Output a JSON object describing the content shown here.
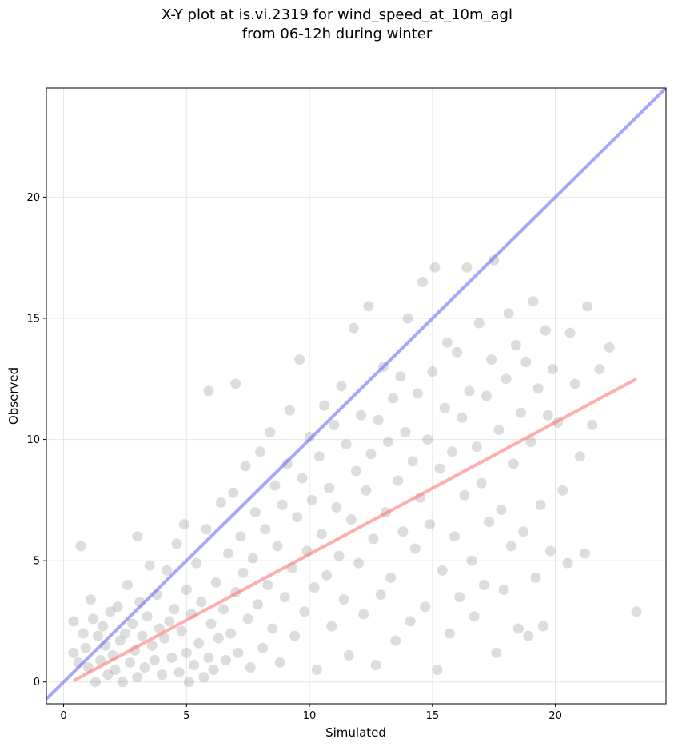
{
  "chart_data": {
    "type": "scatter",
    "title_line1": "X-Y plot at is.vi.2319 for wind_speed_at_10m_agl",
    "title_line2": "from 06-12h during winter",
    "xlabel": "Simulated",
    "ylabel": "Observed",
    "xlim": [
      -0.7,
      24.5
    ],
    "ylim": [
      -0.9,
      24.5
    ],
    "xticks": [
      0,
      5,
      10,
      15,
      20
    ],
    "yticks": [
      0,
      5,
      10,
      15,
      20
    ],
    "xtick_labels": [
      "0",
      "5",
      "10",
      "15",
      "20"
    ],
    "ytick_labels": [
      "0",
      "5",
      "10",
      "15",
      "20"
    ],
    "grid": true,
    "point_color": "#555555",
    "identity_line": {
      "x": [
        -0.7,
        24.5
      ],
      "y": [
        -0.7,
        24.5
      ],
      "color": "#6b6bff"
    },
    "regression_line": {
      "x": [
        0.4,
        23.3
      ],
      "y": [
        0.05,
        12.5
      ],
      "color": "#ff7777"
    },
    "points": [
      [
        0.4,
        2.5
      ],
      [
        0.4,
        1.2
      ],
      [
        0.6,
        0.8
      ],
      [
        0.7,
        5.6
      ],
      [
        0.8,
        2.0
      ],
      [
        0.9,
        1.4
      ],
      [
        1.0,
        0.6
      ],
      [
        1.1,
        3.4
      ],
      [
        1.2,
        2.6
      ],
      [
        1.3,
        0.0
      ],
      [
        1.4,
        1.9
      ],
      [
        1.5,
        0.9
      ],
      [
        1.6,
        2.3
      ],
      [
        1.7,
        1.5
      ],
      [
        1.8,
        0.3
      ],
      [
        1.9,
        2.9
      ],
      [
        2.0,
        1.1
      ],
      [
        2.1,
        0.5
      ],
      [
        2.2,
        3.1
      ],
      [
        2.3,
        1.7
      ],
      [
        2.4,
        0.0
      ],
      [
        2.5,
        2.0
      ],
      [
        2.6,
        4.0
      ],
      [
        2.7,
        0.8
      ],
      [
        2.8,
        2.4
      ],
      [
        2.9,
        1.3
      ],
      [
        3.0,
        6.0
      ],
      [
        3.0,
        0.2
      ],
      [
        3.1,
        3.3
      ],
      [
        3.2,
        1.9
      ],
      [
        3.3,
        0.6
      ],
      [
        3.4,
        2.7
      ],
      [
        3.5,
        4.8
      ],
      [
        3.6,
        1.5
      ],
      [
        3.7,
        0.9
      ],
      [
        3.8,
        3.6
      ],
      [
        3.9,
        2.2
      ],
      [
        4.0,
        0.3
      ],
      [
        4.1,
        1.8
      ],
      [
        4.2,
        4.6
      ],
      [
        4.3,
        2.5
      ],
      [
        4.4,
        1.0
      ],
      [
        4.5,
        3.0
      ],
      [
        4.6,
        5.7
      ],
      [
        4.7,
        0.4
      ],
      [
        4.8,
        2.1
      ],
      [
        4.9,
        6.5
      ],
      [
        5.0,
        1.2
      ],
      [
        5.0,
        3.8
      ],
      [
        5.1,
        0.0
      ],
      [
        5.2,
        2.8
      ],
      [
        5.3,
        0.7
      ],
      [
        5.4,
        4.9
      ],
      [
        5.5,
        1.6
      ],
      [
        5.6,
        3.3
      ],
      [
        5.7,
        0.2
      ],
      [
        5.8,
        6.3
      ],
      [
        5.9,
        12.0
      ],
      [
        5.9,
        1.0
      ],
      [
        6.0,
        2.4
      ],
      [
        6.1,
        0.5
      ],
      [
        6.2,
        4.1
      ],
      [
        6.3,
        1.8
      ],
      [
        6.4,
        7.4
      ],
      [
        6.5,
        3.0
      ],
      [
        6.6,
        0.9
      ],
      [
        6.7,
        5.3
      ],
      [
        6.8,
        2.0
      ],
      [
        6.9,
        7.8
      ],
      [
        7.0,
        12.3
      ],
      [
        7.0,
        3.7
      ],
      [
        7.1,
        1.2
      ],
      [
        7.2,
        6.0
      ],
      [
        7.3,
        4.5
      ],
      [
        7.4,
        8.9
      ],
      [
        7.5,
        2.6
      ],
      [
        7.6,
        0.6
      ],
      [
        7.7,
        5.1
      ],
      [
        7.8,
        7.0
      ],
      [
        7.9,
        3.2
      ],
      [
        8.0,
        9.5
      ],
      [
        8.1,
        1.4
      ],
      [
        8.2,
        6.3
      ],
      [
        8.3,
        4.0
      ],
      [
        8.4,
        10.3
      ],
      [
        8.5,
        2.2
      ],
      [
        8.6,
        8.1
      ],
      [
        8.7,
        5.6
      ],
      [
        8.8,
        0.8
      ],
      [
        8.9,
        7.3
      ],
      [
        9.0,
        3.5
      ],
      [
        9.1,
        9.0
      ],
      [
        9.2,
        11.2
      ],
      [
        9.3,
        4.7
      ],
      [
        9.4,
        1.9
      ],
      [
        9.5,
        6.8
      ],
      [
        9.6,
        13.3
      ],
      [
        9.7,
        8.4
      ],
      [
        9.8,
        2.9
      ],
      [
        9.9,
        5.4
      ],
      [
        10.0,
        10.1
      ],
      [
        10.1,
        7.5
      ],
      [
        10.2,
        3.9
      ],
      [
        10.3,
        0.5
      ],
      [
        10.4,
        9.3
      ],
      [
        10.5,
        6.1
      ],
      [
        10.6,
        11.4
      ],
      [
        10.7,
        4.4
      ],
      [
        10.8,
        8.0
      ],
      [
        10.9,
        2.3
      ],
      [
        11.0,
        10.6
      ],
      [
        11.1,
        7.2
      ],
      [
        11.2,
        5.2
      ],
      [
        11.3,
        12.2
      ],
      [
        11.4,
        3.4
      ],
      [
        11.5,
        9.8
      ],
      [
        11.6,
        1.1
      ],
      [
        11.7,
        6.7
      ],
      [
        11.8,
        14.6
      ],
      [
        11.9,
        8.7
      ],
      [
        12.0,
        4.9
      ],
      [
        12.1,
        11.0
      ],
      [
        12.2,
        2.8
      ],
      [
        12.3,
        7.9
      ],
      [
        12.4,
        15.5
      ],
      [
        12.5,
        9.4
      ],
      [
        12.6,
        5.9
      ],
      [
        12.7,
        0.7
      ],
      [
        12.8,
        10.8
      ],
      [
        12.9,
        3.6
      ],
      [
        13.0,
        13.0
      ],
      [
        13.1,
        7.0
      ],
      [
        13.2,
        9.9
      ],
      [
        13.3,
        4.3
      ],
      [
        13.4,
        11.7
      ],
      [
        13.5,
        1.7
      ],
      [
        13.6,
        8.3
      ],
      [
        13.7,
        12.6
      ],
      [
        13.8,
        6.2
      ],
      [
        13.9,
        10.3
      ],
      [
        14.0,
        15.0
      ],
      [
        14.1,
        2.5
      ],
      [
        14.2,
        9.1
      ],
      [
        14.3,
        5.5
      ],
      [
        14.4,
        11.9
      ],
      [
        14.5,
        7.6
      ],
      [
        14.6,
        16.5
      ],
      [
        14.7,
        3.1
      ],
      [
        14.8,
        10.0
      ],
      [
        14.9,
        6.5
      ],
      [
        15.0,
        12.8
      ],
      [
        15.1,
        17.1
      ],
      [
        15.2,
        0.5
      ],
      [
        15.3,
        8.8
      ],
      [
        15.4,
        4.6
      ],
      [
        15.5,
        11.3
      ],
      [
        15.6,
        14.0
      ],
      [
        15.7,
        2.0
      ],
      [
        15.8,
        9.5
      ],
      [
        15.9,
        6.0
      ],
      [
        16.0,
        13.6
      ],
      [
        16.1,
        3.5
      ],
      [
        16.2,
        10.9
      ],
      [
        16.3,
        7.7
      ],
      [
        16.4,
        17.1
      ],
      [
        16.5,
        12.0
      ],
      [
        16.6,
        5.0
      ],
      [
        16.7,
        2.7
      ],
      [
        16.8,
        9.7
      ],
      [
        16.9,
        14.8
      ],
      [
        17.0,
        8.2
      ],
      [
        17.1,
        4.0
      ],
      [
        17.2,
        11.8
      ],
      [
        17.3,
        6.6
      ],
      [
        17.4,
        13.3
      ],
      [
        17.5,
        17.4
      ],
      [
        17.6,
        1.2
      ],
      [
        17.7,
        10.4
      ],
      [
        17.8,
        7.1
      ],
      [
        17.9,
        3.8
      ],
      [
        18.0,
        12.5
      ],
      [
        18.1,
        15.2
      ],
      [
        18.2,
        5.6
      ],
      [
        18.3,
        9.0
      ],
      [
        18.4,
        13.9
      ],
      [
        18.5,
        2.2
      ],
      [
        18.6,
        11.1
      ],
      [
        18.7,
        6.2
      ],
      [
        18.8,
        13.2
      ],
      [
        18.9,
        1.9
      ],
      [
        19.0,
        9.9
      ],
      [
        19.1,
        15.7
      ],
      [
        19.2,
        4.3
      ],
      [
        19.3,
        12.1
      ],
      [
        19.4,
        7.3
      ],
      [
        19.5,
        2.3
      ],
      [
        19.6,
        14.5
      ],
      [
        19.7,
        11.0
      ],
      [
        19.8,
        5.4
      ],
      [
        19.9,
        12.9
      ],
      [
        20.1,
        10.7
      ],
      [
        20.3,
        7.9
      ],
      [
        20.5,
        4.9
      ],
      [
        20.6,
        14.4
      ],
      [
        20.8,
        12.3
      ],
      [
        21.0,
        9.3
      ],
      [
        21.2,
        5.3
      ],
      [
        21.3,
        15.5
      ],
      [
        21.5,
        10.6
      ],
      [
        21.8,
        12.9
      ],
      [
        22.2,
        13.8
      ],
      [
        23.3,
        2.9
      ]
    ]
  }
}
